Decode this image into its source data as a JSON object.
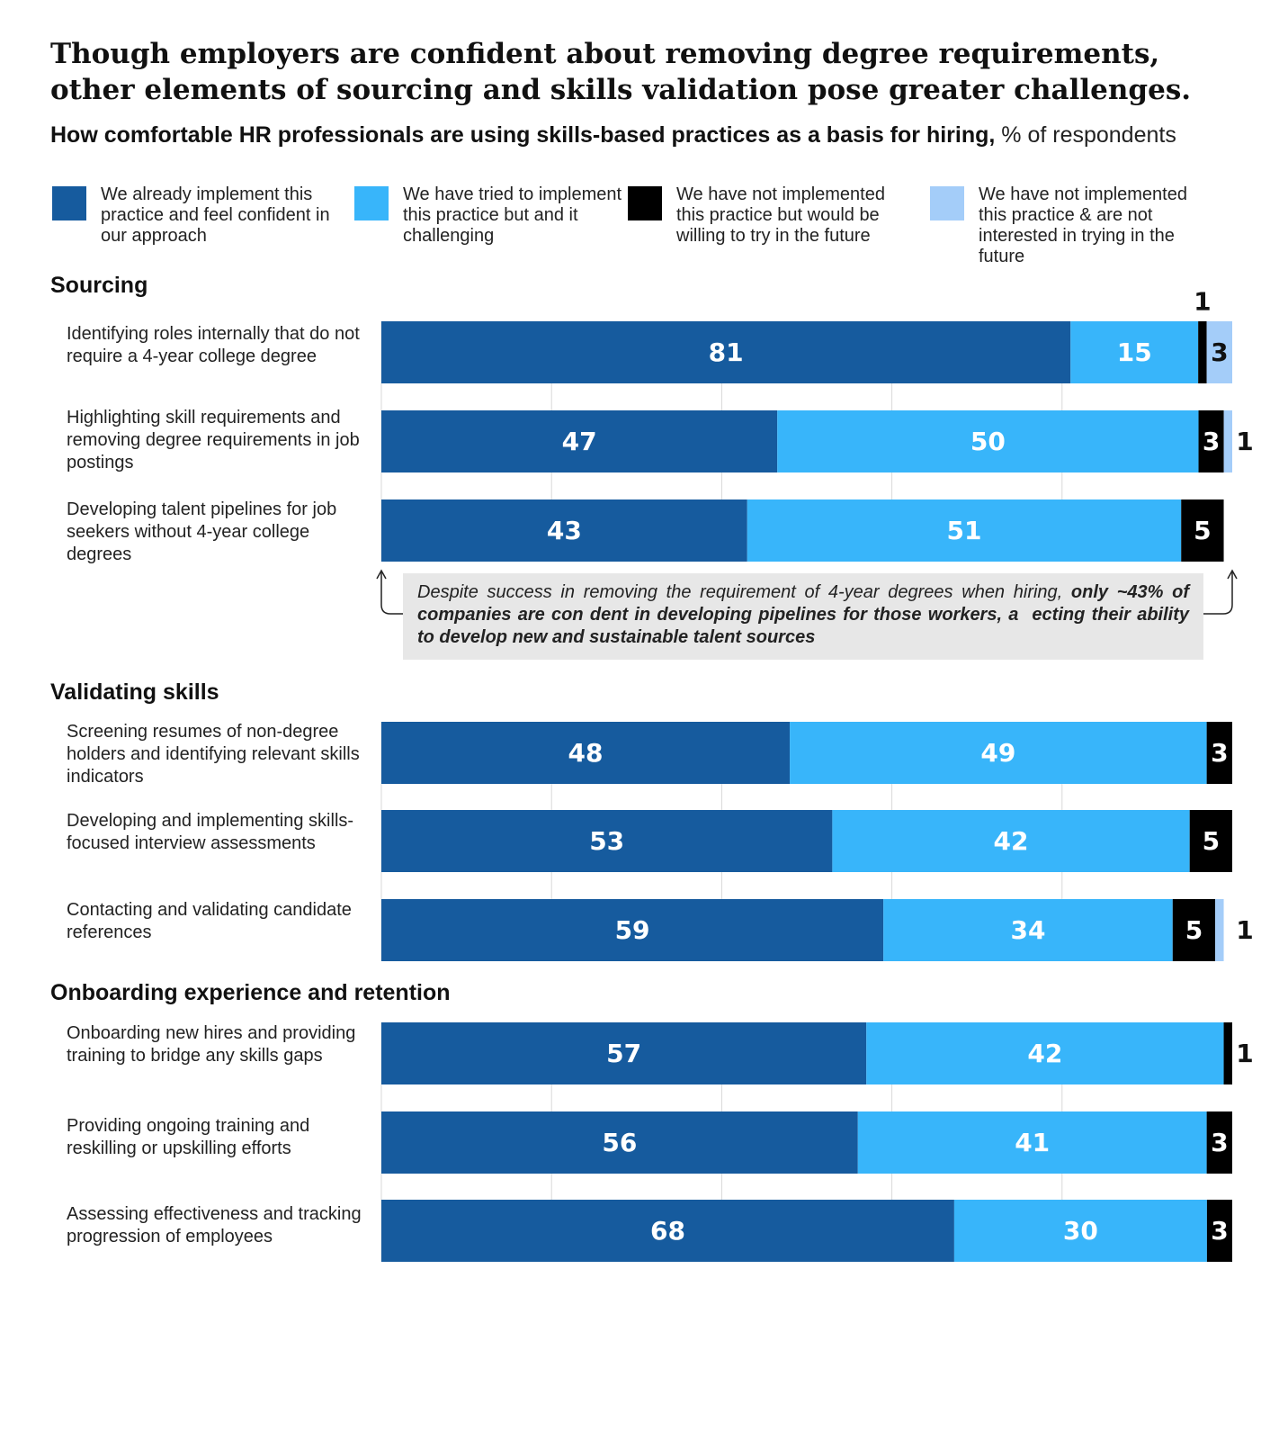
{
  "headline": "Though employers are confident about removing degree requirements, other elements of sourcing and skills validation pose greater challenges.",
  "subtitle": {
    "bold": "How comfortable HR professionals are using skills-based practices as a basis for hiring,",
    "unit": " % of respondents"
  },
  "legend": [
    {
      "label": "We already implement this practice and feel confident in our approach",
      "color": "#165b9e"
    },
    {
      "label": "We have tried to implement this practice but and it challenging",
      "color": "#38b5fa"
    },
    {
      "label": "We have not implemented this practice but would be willing to try in the future",
      "color": "#000000"
    },
    {
      "label": "We have not implemented this practice & are not interested in trying in the future",
      "color": "#a4cdf9"
    }
  ],
  "callout": {
    "normal": "Despite success in removing the requirement of 4-year degrees when hiring, ",
    "bold": "only ~43% of companies are con dent in developing pipelines for those workers, a\u0000ecting their ability to develop new and sustainable talent sources"
  },
  "chart_data": {
    "type": "bar",
    "orientation": "horizontal",
    "stacked": true,
    "unit": "% of respondents",
    "xlim": [
      0,
      100
    ],
    "series_names": [
      "We already implement this practice and feel confident in our approach",
      "We have tried to implement this practice but and it challenging",
      "We have not implemented this practice but would be willing to try in the future",
      "We have not implemented this practice & are not interested in trying in the future"
    ],
    "colors": [
      "#165b9e",
      "#38b5fa",
      "#000000",
      "#a4cdf9"
    ],
    "label_colors": [
      "#ffffff",
      "#ffffff",
      "#ffffff",
      "#111111"
    ],
    "sections": [
      {
        "title": "Sourcing",
        "rows": [
          {
            "label": "Identifying roles internally that do not require a 4-year college degree",
            "values": [
              81,
              15,
              1,
              3
            ]
          },
          {
            "label": "Highlighting skill requirements and removing degree requirements in job postings",
            "values": [
              47,
              50,
              3,
              1
            ]
          },
          {
            "label": "Developing talent pipelines for job seekers without 4-year college degrees",
            "values": [
              43,
              51,
              5,
              0
            ]
          }
        ]
      },
      {
        "title": "Validating skills",
        "rows": [
          {
            "label": "Screening resumes of non-degree holders and identifying relevant skills indicators",
            "values": [
              48,
              49,
              3,
              0
            ]
          },
          {
            "label": "Developing and implementing skills-focused interview assessments",
            "values": [
              53,
              42,
              5,
              0
            ]
          },
          {
            "label": "Contacting and validating candidate references",
            "values": [
              59,
              34,
              5,
              1
            ]
          }
        ]
      },
      {
        "title": "Onboarding experience and retention",
        "rows": [
          {
            "label": "Onboarding new hires and providing training to bridge any skills gaps",
            "values": [
              57,
              42,
              1,
              0
            ]
          },
          {
            "label": "Providing ongoing training and reskilling or upskilling efforts",
            "values": [
              56,
              41,
              3,
              0
            ]
          },
          {
            "label": "Assessing effectiveness and tracking progression of employees",
            "values": [
              68,
              30,
              3,
              0
            ]
          }
        ]
      }
    ]
  }
}
